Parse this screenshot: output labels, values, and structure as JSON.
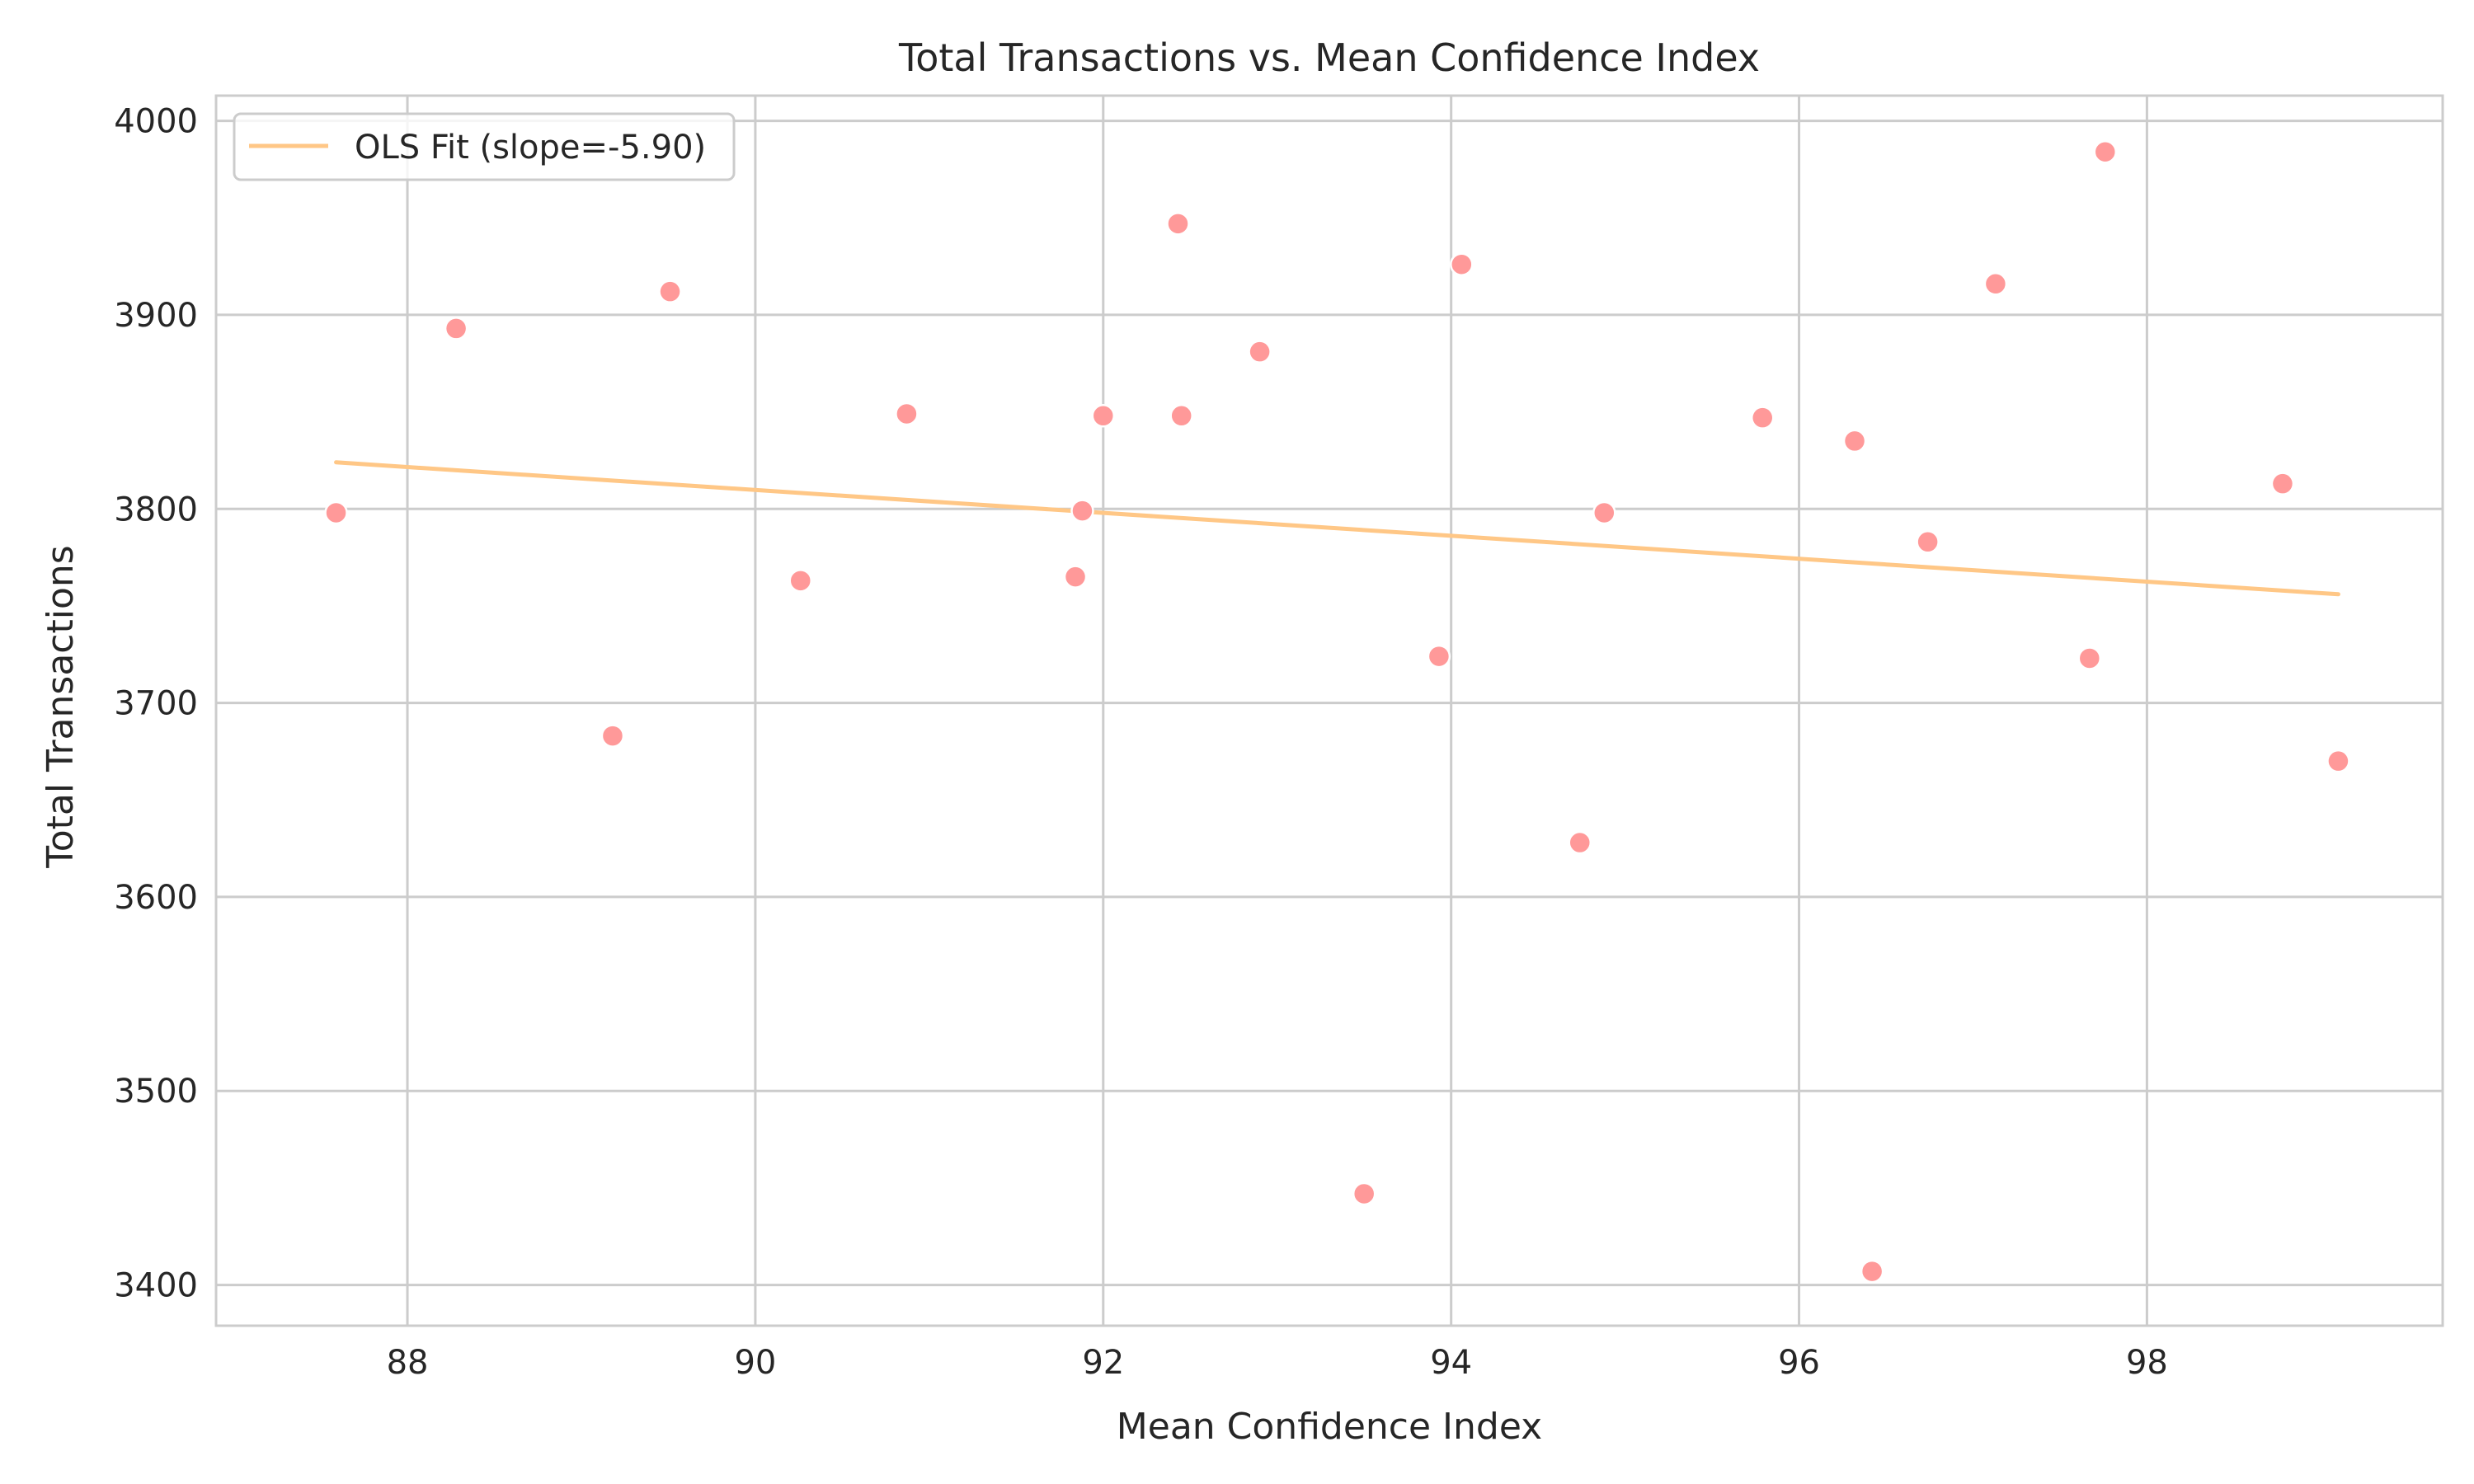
{
  "chart_data": {
    "type": "scatter",
    "title": "Total Transactions vs. Mean Confidence Index",
    "xlabel": "Mean Confidence Index",
    "ylabel": "Total Transactions",
    "xlim": [
      86.9,
      99.7
    ],
    "ylim": [
      3379,
      4013
    ],
    "xticks": [
      88,
      90,
      92,
      94,
      96,
      98
    ],
    "yticks": [
      3400,
      3500,
      3600,
      3700,
      3800,
      3900,
      4000
    ],
    "grid": true,
    "legend_position": "top-left",
    "series": [
      {
        "kind": "scatter",
        "color": "#ff9999",
        "points": [
          {
            "x": 87.59,
            "y": 3798
          },
          {
            "x": 88.28,
            "y": 3893
          },
          {
            "x": 89.18,
            "y": 3683
          },
          {
            "x": 89.51,
            "y": 3912
          },
          {
            "x": 90.26,
            "y": 3763
          },
          {
            "x": 90.87,
            "y": 3849
          },
          {
            "x": 91.84,
            "y": 3765
          },
          {
            "x": 91.88,
            "y": 3799
          },
          {
            "x": 92.0,
            "y": 3848
          },
          {
            "x": 92.43,
            "y": 3947
          },
          {
            "x": 92.45,
            "y": 3848
          },
          {
            "x": 92.9,
            "y": 3881
          },
          {
            "x": 93.5,
            "y": 3447
          },
          {
            "x": 93.93,
            "y": 3724
          },
          {
            "x": 94.06,
            "y": 3926
          },
          {
            "x": 94.74,
            "y": 3628
          },
          {
            "x": 94.88,
            "y": 3798
          },
          {
            "x": 95.79,
            "y": 3847
          },
          {
            "x": 96.32,
            "y": 3835
          },
          {
            "x": 96.42,
            "y": 3407
          },
          {
            "x": 96.74,
            "y": 3783
          },
          {
            "x": 97.13,
            "y": 3916
          },
          {
            "x": 97.67,
            "y": 3723
          },
          {
            "x": 97.76,
            "y": 3984
          },
          {
            "x": 98.78,
            "y": 3813
          },
          {
            "x": 99.1,
            "y": 3670
          }
        ]
      },
      {
        "kind": "line",
        "name": "OLS Fit (slope=-5.90)",
        "color": "#ffc786",
        "points": [
          {
            "x": 87.59,
            "y": 3824
          },
          {
            "x": 99.1,
            "y": 3756
          }
        ]
      }
    ]
  }
}
